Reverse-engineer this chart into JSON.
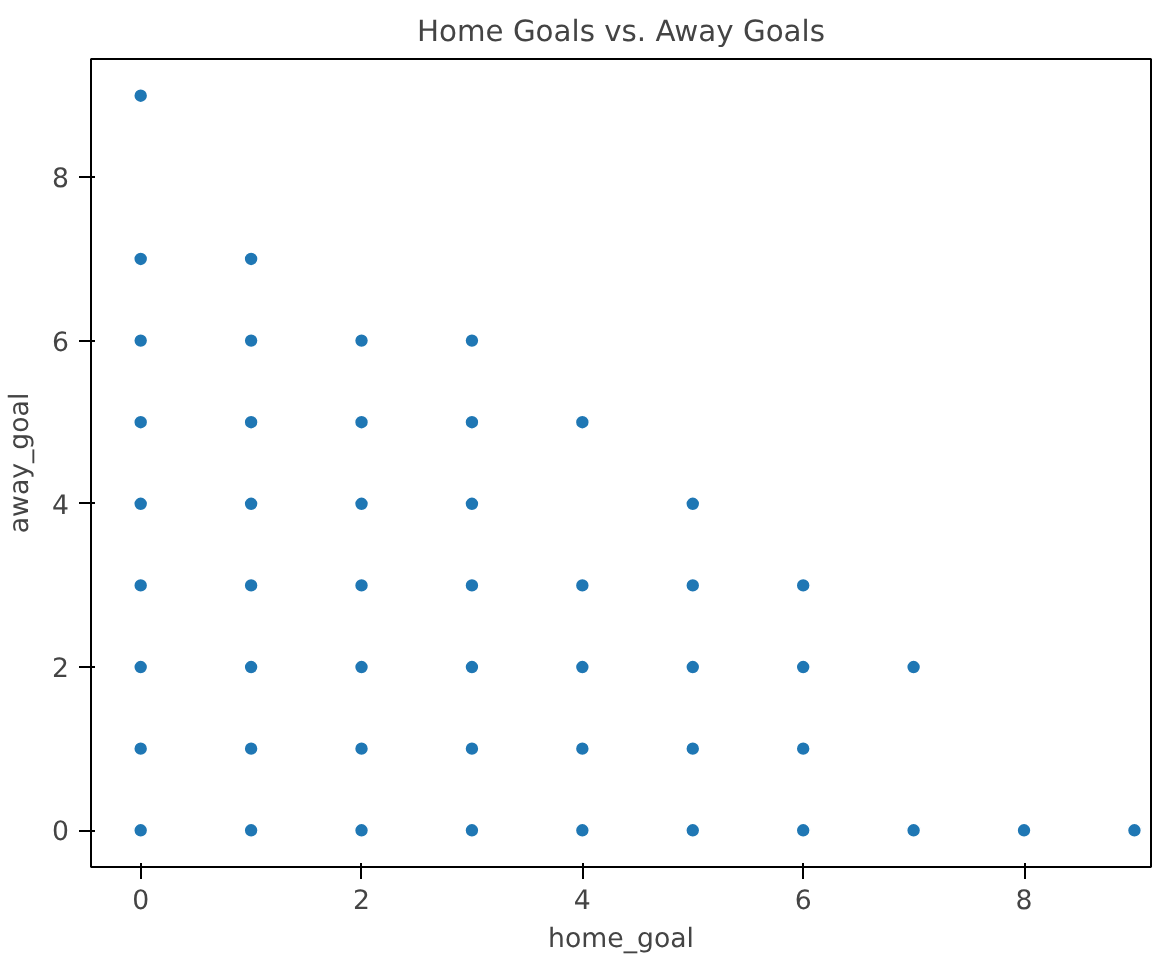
{
  "chart_data": {
    "type": "scatter",
    "title": "Home Goals vs. Away Goals",
    "xlabel": "home_goal",
    "ylabel": "away_goal",
    "series": [
      {
        "color": "#1f77b4",
        "x": [
          0,
          0,
          0,
          0,
          0,
          0,
          0,
          0,
          0,
          1,
          1,
          1,
          1,
          1,
          1,
          1,
          1,
          2,
          2,
          2,
          2,
          2,
          2,
          2,
          3,
          3,
          3,
          3,
          3,
          3,
          3,
          4,
          4,
          4,
          4,
          4,
          5,
          5,
          5,
          5,
          5,
          6,
          6,
          6,
          6,
          7,
          7,
          8,
          9
        ],
        "values": [
          0,
          1,
          2,
          3,
          4,
          5,
          6,
          7,
          9,
          0,
          1,
          2,
          3,
          4,
          5,
          6,
          7,
          0,
          1,
          2,
          3,
          4,
          5,
          6,
          0,
          1,
          2,
          3,
          4,
          5,
          6,
          0,
          1,
          2,
          3,
          5,
          0,
          1,
          2,
          3,
          4,
          0,
          1,
          2,
          3,
          0,
          2,
          0,
          0
        ]
      }
    ],
    "xlim": [
      -0.45,
      9.15
    ],
    "ylim": [
      -0.45,
      9.45
    ],
    "xticks": [
      0,
      2,
      4,
      6,
      8
    ],
    "yticks": [
      0,
      2,
      4,
      6,
      8
    ],
    "marker": "circle",
    "grid": false
  }
}
